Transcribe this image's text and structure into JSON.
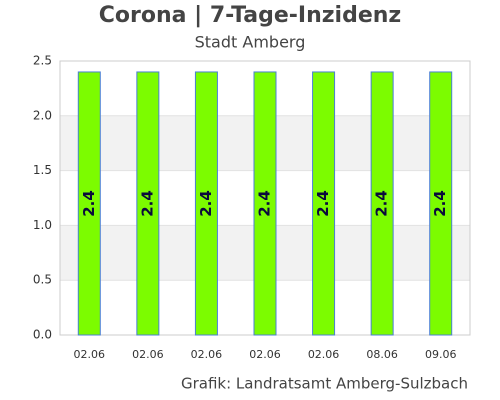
{
  "chart_data": {
    "type": "bar",
    "title": "Corona | 7-Tage-Inzidenz",
    "subtitle": "Stadt Amberg",
    "source": "Grafik: Landratsamt Amberg-Sulzbach",
    "categories": [
      "02.06",
      "02.06",
      "02.06",
      "02.06",
      "02.06",
      "08.06",
      "09.06"
    ],
    "values": [
      2.4,
      2.4,
      2.4,
      2.4,
      2.4,
      2.4,
      2.4
    ],
    "color": "#7cfc00",
    "edge_color": "#4a7fd4",
    "label_color": "#0a0a3c",
    "ylim": [
      0,
      2.5
    ],
    "yticks": [
      {
        "value": 0,
        "label": "0.0"
      },
      0.5,
      {
        "value": 1,
        "label": "1.0"
      },
      1.5,
      {
        "value": 2,
        "label": "2.0"
      },
      2.5
    ],
    "grid": true
  }
}
